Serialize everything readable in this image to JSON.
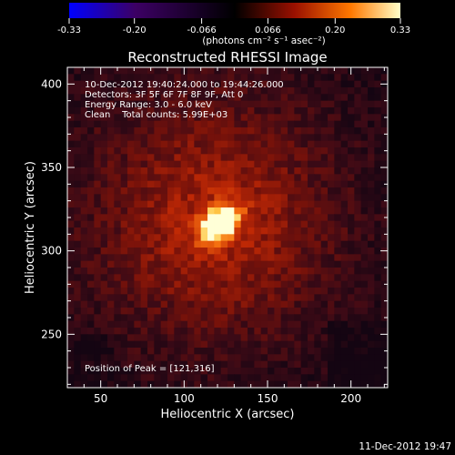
{
  "colorbar": {
    "ticks": [
      "-0.33",
      "-0.20",
      "-0.066",
      "0.066",
      "0.20",
      "0.33"
    ],
    "tick_values": [
      -0.33,
      -0.2,
      -0.066,
      0.066,
      0.2,
      0.33
    ],
    "range": [
      -0.33,
      0.33
    ],
    "unit_label": "(photons cm⁻² s⁻¹ asec⁻²)",
    "colors": [
      "#0000ff",
      "#3c0064",
      "#000000",
      "#9a1000",
      "#ff7800",
      "#ffffc8"
    ]
  },
  "chart_data": {
    "type": "heatmap",
    "title": "Reconstructed RHESSI Image",
    "xlabel": "Heliocentric X (arcsec)",
    "ylabel": "Heliocentric Y (arcsec)",
    "xlim": [
      30,
      222
    ],
    "ylim": [
      218,
      410
    ],
    "x_ticks": [
      50,
      100,
      150,
      200
    ],
    "y_ticks": [
      250,
      300,
      350,
      400
    ],
    "info_lines": [
      "10-Dec-2012 19:40:24.000 to 19:44:26.000",
      "Detectors: 3F 5F 6F 7F 8F 9F, Att 0",
      "Energy Range: 3.0 - 6.0 keV",
      "Clean    Total counts: 5.99E+03"
    ],
    "peak_label": "Position of Peak = [121,316]",
    "peak": [
      121,
      316
    ],
    "grid": false
  },
  "footer": {
    "timestamp": "11-Dec-2012 19:47"
  }
}
